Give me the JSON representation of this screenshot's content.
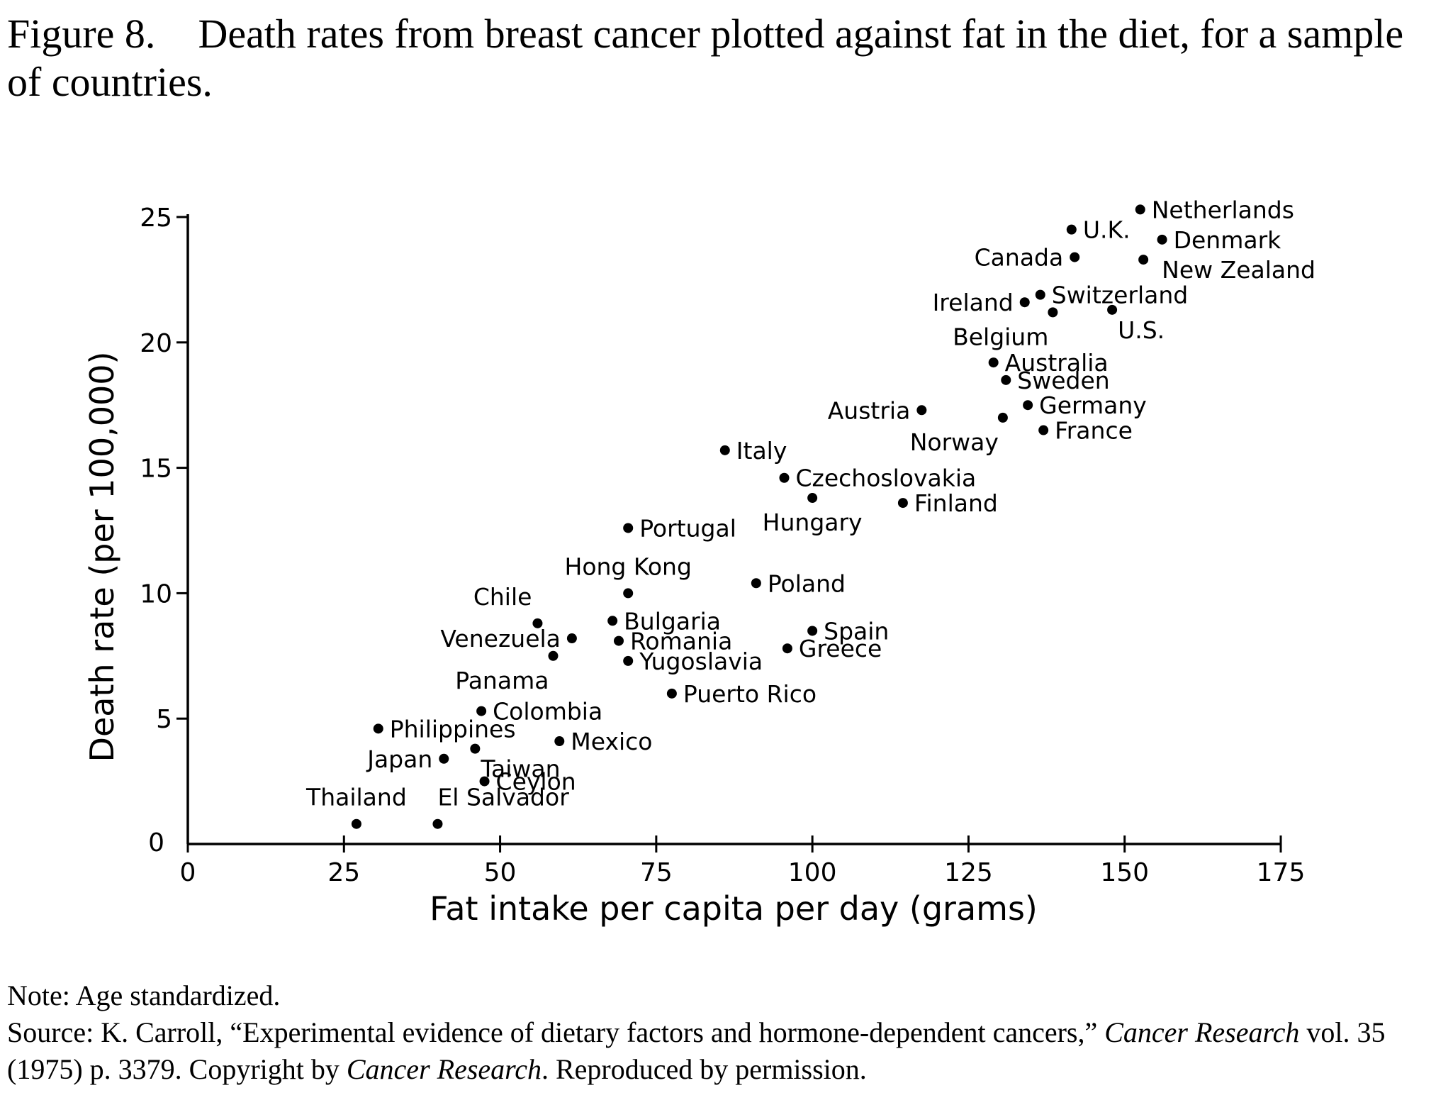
{
  "caption": {
    "figure_number": "Figure 8.",
    "text": "Death rates from breast cancer plotted against fat in the diet, for a sample of countries."
  },
  "notes": {
    "note": "Note:  Age standardized.",
    "source_prefix": "Source: K. Carroll, “Experimental evidence of dietary factors and hormone-dependent cancers,” ",
    "source_journal": "Cancer Research",
    "source_mid": " vol. 35 (1975) p. 3379. Copyright by ",
    "source_journal2": "Cancer Research",
    "source_suffix": ". Reproduced by permission."
  },
  "chart_data": {
    "type": "scatter",
    "title": "",
    "xlabel": "Fat intake per capita per day (grams)",
    "ylabel": "Death rate (per 100,000)",
    "xlim": [
      0,
      175
    ],
    "ylim": [
      0,
      25
    ],
    "xticks": [
      0,
      25,
      50,
      75,
      100,
      125,
      150,
      175
    ],
    "yticks": [
      0,
      5,
      10,
      15,
      20,
      25
    ],
    "grid": false,
    "points": [
      {
        "label": "Netherlands",
        "x": 152.5,
        "y": 25.3,
        "pos": "right"
      },
      {
        "label": "U.K.",
        "x": 141.5,
        "y": 24.5,
        "pos": "right"
      },
      {
        "label": "Denmark",
        "x": 156.0,
        "y": 24.1,
        "pos": "right"
      },
      {
        "label": "Canada",
        "x": 142.0,
        "y": 23.4,
        "pos": "left"
      },
      {
        "label": "New Zealand",
        "x": 153.0,
        "y": 23.3,
        "pos": "right-below"
      },
      {
        "label": "Ireland",
        "x": 134.0,
        "y": 21.6,
        "pos": "left"
      },
      {
        "label": "Switzerland",
        "x": 136.5,
        "y": 21.9,
        "pos": "right"
      },
      {
        "label": "Belgium",
        "x": 138.5,
        "y": 21.2,
        "pos": "below-left"
      },
      {
        "label": "U.S.",
        "x": 148.0,
        "y": 21.3,
        "pos": "below-right"
      },
      {
        "label": "Australia",
        "x": 129.0,
        "y": 19.2,
        "pos": "right"
      },
      {
        "label": "Sweden",
        "x": 131.0,
        "y": 18.5,
        "pos": "right"
      },
      {
        "label": "Austria",
        "x": 117.5,
        "y": 17.3,
        "pos": "left"
      },
      {
        "label": "Germany",
        "x": 134.5,
        "y": 17.5,
        "pos": "right"
      },
      {
        "label": "Norway",
        "x": 130.5,
        "y": 17.0,
        "pos": "below-left"
      },
      {
        "label": "France",
        "x": 137.0,
        "y": 16.5,
        "pos": "right"
      },
      {
        "label": "Italy",
        "x": 86.0,
        "y": 15.7,
        "pos": "right"
      },
      {
        "label": "Czechoslovakia",
        "x": 95.5,
        "y": 14.6,
        "pos": "right"
      },
      {
        "label": "Hungary",
        "x": 100.0,
        "y": 13.8,
        "pos": "below"
      },
      {
        "label": "Finland",
        "x": 114.5,
        "y": 13.6,
        "pos": "right"
      },
      {
        "label": "Portugal",
        "x": 70.5,
        "y": 12.6,
        "pos": "right"
      },
      {
        "label": "Hong Kong",
        "x": 70.5,
        "y": 10.0,
        "pos": "above"
      },
      {
        "label": "Poland",
        "x": 91.0,
        "y": 10.4,
        "pos": "right"
      },
      {
        "label": "Chile",
        "x": 56.0,
        "y": 8.8,
        "pos": "above-left"
      },
      {
        "label": "Bulgaria",
        "x": 68.0,
        "y": 8.9,
        "pos": "right"
      },
      {
        "label": "Spain",
        "x": 100.0,
        "y": 8.5,
        "pos": "right"
      },
      {
        "label": "Venezuela",
        "x": 61.5,
        "y": 8.2,
        "pos": "left"
      },
      {
        "label": "Romania",
        "x": 69.0,
        "y": 8.1,
        "pos": "right"
      },
      {
        "label": "Greece",
        "x": 96.0,
        "y": 7.8,
        "pos": "right"
      },
      {
        "label": "Panama",
        "x": 58.5,
        "y": 7.5,
        "pos": "below-left"
      },
      {
        "label": "Yugoslavia",
        "x": 70.5,
        "y": 7.3,
        "pos": "right"
      },
      {
        "label": "Puerto Rico",
        "x": 77.5,
        "y": 6.0,
        "pos": "right"
      },
      {
        "label": "Colombia",
        "x": 47.0,
        "y": 5.3,
        "pos": "right"
      },
      {
        "label": "Philippines",
        "x": 30.5,
        "y": 4.6,
        "pos": "right"
      },
      {
        "label": "Mexico",
        "x": 59.5,
        "y": 4.1,
        "pos": "right"
      },
      {
        "label": "Japan",
        "x": 41.0,
        "y": 3.4,
        "pos": "left"
      },
      {
        "label": "Taiwan",
        "x": 46.0,
        "y": 3.8,
        "pos": "below-right"
      },
      {
        "label": "Ceylon",
        "x": 47.5,
        "y": 2.5,
        "pos": "right"
      },
      {
        "label": "Thailand",
        "x": 27.0,
        "y": 0.8,
        "pos": "above"
      },
      {
        "label": "El Salvador",
        "x": 40.0,
        "y": 0.8,
        "pos": "above-right"
      }
    ]
  }
}
